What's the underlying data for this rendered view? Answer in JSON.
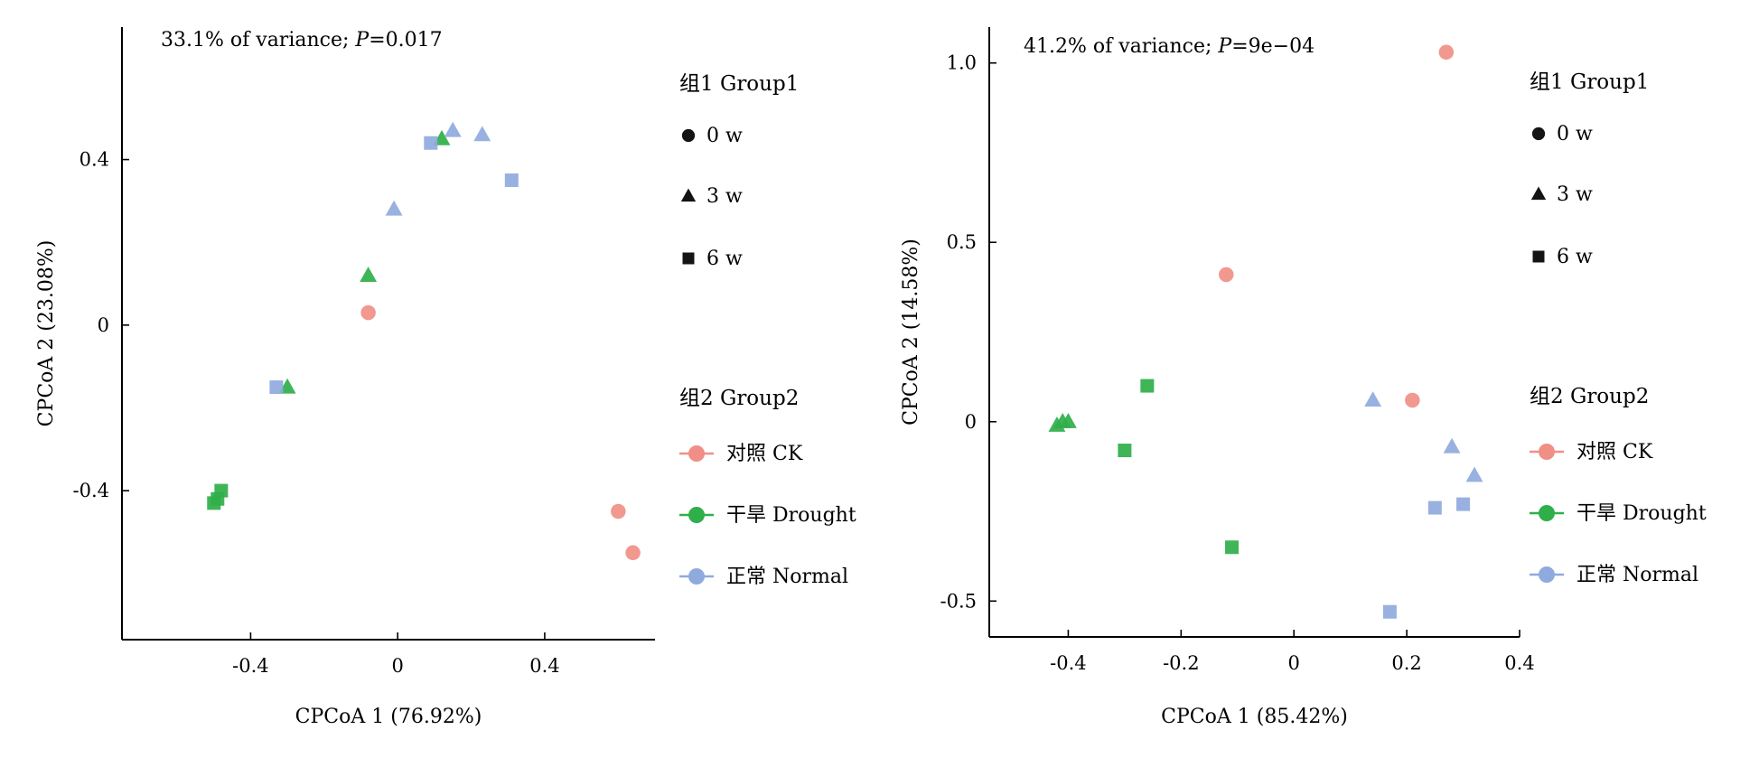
{
  "chart_data": [
    {
      "type": "scatter",
      "annotation": {
        "prefix": "33.1% of variance; ",
        "pvar": "P",
        "pval": "=0.017"
      },
      "xlabel": "CPCoA 1 (76.92%)",
      "ylabel": "CPCoA 2 (23.08%)",
      "xlim": [
        -0.75,
        0.7
      ],
      "ylim": [
        -0.76,
        0.72
      ],
      "xticks": [
        -0.4,
        0,
        0.4
      ],
      "yticks": [
        -0.4,
        0,
        0.4
      ],
      "xticklabels": [
        "-0.4",
        "0",
        "0.4"
      ],
      "yticklabels": [
        "-0.4",
        "0",
        "0.4"
      ],
      "legend": {
        "group1_title": "组1 Group1",
        "group1": [
          {
            "shape": "circle",
            "label": "0 w"
          },
          {
            "shape": "triangle",
            "label": "3 w"
          },
          {
            "shape": "square",
            "label": "6 w"
          }
        ],
        "group2_title": "组2 Group2",
        "group2": [
          {
            "color": "#f08f86",
            "label": "对照 CK"
          },
          {
            "color": "#2faf4a",
            "label": "干旱 Drought"
          },
          {
            "color": "#8faadd",
            "label": "正常 Normal"
          }
        ]
      },
      "points": [
        {
          "x": -0.08,
          "y": 0.03,
          "shape": "circle",
          "group": "CK"
        },
        {
          "x": 0.6,
          "y": -0.45,
          "shape": "circle",
          "group": "CK"
        },
        {
          "x": 0.64,
          "y": -0.55,
          "shape": "circle",
          "group": "CK"
        },
        {
          "x": -0.08,
          "y": 0.12,
          "shape": "triangle",
          "group": "Drought"
        },
        {
          "x": 0.12,
          "y": 0.45,
          "shape": "triangle",
          "group": "Drought"
        },
        {
          "x": -0.3,
          "y": -0.15,
          "shape": "triangle",
          "group": "Drought"
        },
        {
          "x": -0.5,
          "y": -0.43,
          "shape": "square",
          "group": "Drought"
        },
        {
          "x": -0.49,
          "y": -0.42,
          "shape": "square",
          "group": "Drought"
        },
        {
          "x": -0.48,
          "y": -0.4,
          "shape": "square",
          "group": "Drought"
        },
        {
          "x": -0.01,
          "y": 0.28,
          "shape": "triangle",
          "group": "Normal"
        },
        {
          "x": 0.15,
          "y": 0.47,
          "shape": "triangle",
          "group": "Normal"
        },
        {
          "x": 0.23,
          "y": 0.46,
          "shape": "triangle",
          "group": "Normal"
        },
        {
          "x": 0.09,
          "y": 0.44,
          "shape": "square",
          "group": "Normal"
        },
        {
          "x": 0.31,
          "y": 0.35,
          "shape": "square",
          "group": "Normal"
        },
        {
          "x": -0.33,
          "y": -0.15,
          "shape": "square",
          "group": "Normal"
        }
      ]
    },
    {
      "type": "scatter",
      "annotation": {
        "prefix": "41.2% of variance; ",
        "pvar": "P",
        "pval": "=9e−04"
      },
      "xlabel": "CPCoA 1 (85.42%)",
      "ylabel": "CPCoA 2 (14.58%)",
      "xlim": [
        -0.54,
        0.4
      ],
      "ylim": [
        -0.6,
        1.1
      ],
      "xticks": [
        -0.4,
        -0.2,
        0,
        0.2,
        0.4
      ],
      "yticks": [
        -0.5,
        0,
        0.5,
        1.0
      ],
      "xticklabels": [
        "-0.4",
        "-0.2",
        "0",
        "0.2",
        "0.4"
      ],
      "yticklabels": [
        "-0.5",
        "0",
        "0.5",
        "1.0"
      ],
      "legend": {
        "group1_title": "组1 Group1",
        "group1": [
          {
            "shape": "circle",
            "label": "0 w"
          },
          {
            "shape": "triangle",
            "label": "3 w"
          },
          {
            "shape": "square",
            "label": "6 w"
          }
        ],
        "group2_title": "组2 Group2",
        "group2": [
          {
            "color": "#f08f86",
            "label": "对照 CK"
          },
          {
            "color": "#2faf4a",
            "label": "干旱 Drought"
          },
          {
            "color": "#8faadd",
            "label": "正常 Normal"
          }
        ]
      },
      "points": [
        {
          "x": 0.27,
          "y": 1.03,
          "shape": "circle",
          "group": "CK"
        },
        {
          "x": -0.12,
          "y": 0.41,
          "shape": "circle",
          "group": "CK"
        },
        {
          "x": 0.21,
          "y": 0.06,
          "shape": "circle",
          "group": "CK"
        },
        {
          "x": -0.42,
          "y": -0.01,
          "shape": "triangle",
          "group": "Drought"
        },
        {
          "x": -0.41,
          "y": 0.0,
          "shape": "triangle",
          "group": "Drought"
        },
        {
          "x": -0.4,
          "y": 0.0,
          "shape": "triangle",
          "group": "Drought"
        },
        {
          "x": -0.26,
          "y": 0.1,
          "shape": "square",
          "group": "Drought"
        },
        {
          "x": -0.3,
          "y": -0.08,
          "shape": "square",
          "group": "Drought"
        },
        {
          "x": -0.11,
          "y": -0.35,
          "shape": "square",
          "group": "Drought"
        },
        {
          "x": 0.14,
          "y": 0.06,
          "shape": "triangle",
          "group": "Normal"
        },
        {
          "x": 0.28,
          "y": -0.07,
          "shape": "triangle",
          "group": "Normal"
        },
        {
          "x": 0.32,
          "y": -0.15,
          "shape": "triangle",
          "group": "Normal"
        },
        {
          "x": 0.25,
          "y": -0.24,
          "shape": "square",
          "group": "Normal"
        },
        {
          "x": 0.3,
          "y": -0.23,
          "shape": "square",
          "group": "Normal"
        },
        {
          "x": 0.17,
          "y": -0.53,
          "shape": "square",
          "group": "Normal"
        }
      ]
    }
  ],
  "colors": {
    "CK": "#f08f86",
    "Drought": "#2faf4a",
    "Normal": "#8faadd"
  }
}
